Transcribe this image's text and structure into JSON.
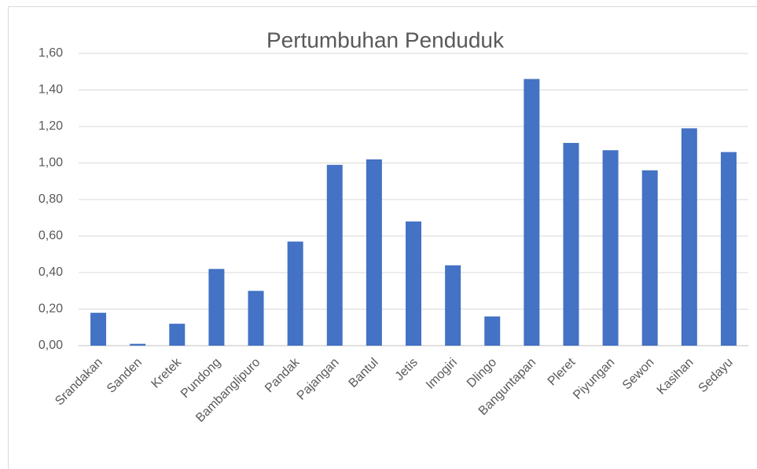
{
  "chart_data": {
    "type": "bar",
    "title": "Pertumbuhan Penduduk",
    "categories": [
      "Srandakan",
      "Sanden",
      "Kretek",
      "Pundong",
      "Bambanglipuro",
      "Pandak",
      "Pajangan",
      "Bantul",
      "Jetis",
      "Imogiri",
      "Dlingo",
      "Banguntapan",
      "Pleret",
      "Piyungan",
      "Sewon",
      "Kasihan",
      "Sedayu"
    ],
    "values": [
      0.18,
      0.01,
      0.12,
      0.42,
      0.3,
      0.57,
      0.99,
      1.02,
      0.68,
      0.44,
      0.16,
      1.46,
      1.11,
      1.07,
      0.96,
      1.19,
      1.06
    ],
    "color": "#4472c4",
    "ylim": [
      0,
      1.6
    ],
    "yticks": [
      {
        "value": 0,
        "label": "0,00"
      },
      {
        "value": 0.2,
        "label": "0,20"
      },
      {
        "value": 0.4,
        "label": "0,40"
      },
      {
        "value": 0.6,
        "label": "0,60"
      },
      {
        "value": 0.8,
        "label": "0,80"
      },
      {
        "value": 1.0,
        "label": "1,00"
      },
      {
        "value": 1.2,
        "label": "1,20"
      },
      {
        "value": 1.4,
        "label": "1,40"
      },
      {
        "value": 1.6,
        "label": "1,60"
      }
    ],
    "grid": true
  }
}
